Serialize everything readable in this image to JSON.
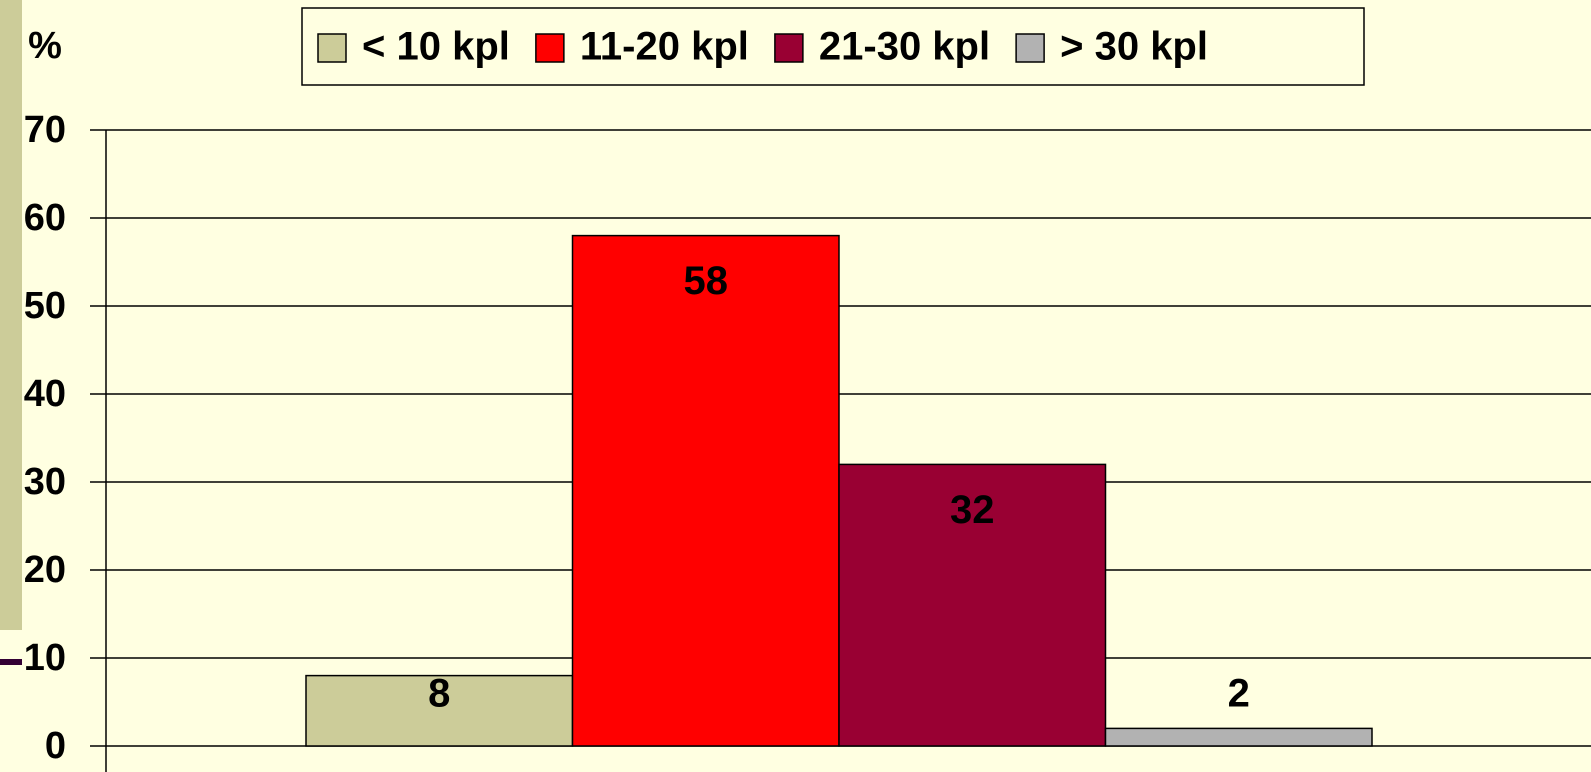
{
  "chart_data": {
    "type": "bar",
    "y_label": "%",
    "categories": [
      null
    ],
    "series": [
      {
        "name": "< 10 kpl",
        "color": "#CCCC99",
        "values": [
          8
        ]
      },
      {
        "name": "11-20 kpl",
        "color": "#FF0000",
        "values": [
          58
        ]
      },
      {
        "name": "21-30 kpl",
        "color": "#990033",
        "values": [
          32
        ]
      },
      {
        "name": "> 30 kpl",
        "color": "#B2B2B2",
        "values": [
          2
        ]
      }
    ],
    "ylim": [
      0,
      70
    ],
    "yticks": [
      0,
      10,
      20,
      30,
      40,
      50,
      60,
      70
    ],
    "grid": true,
    "legend": "top",
    "data_labels": true
  }
}
